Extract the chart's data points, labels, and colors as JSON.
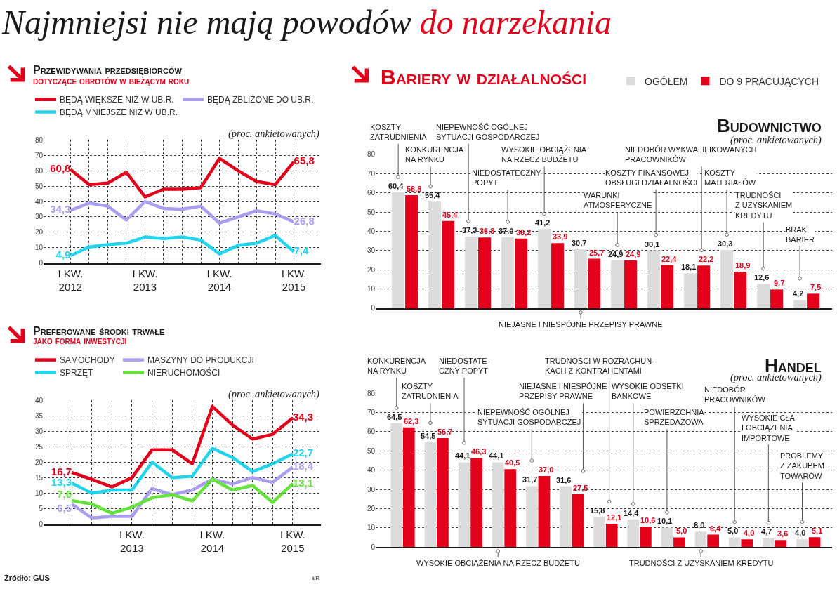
{
  "chart_data": [
    {
      "type": "other",
      "title": "Najmniejsi nie mają powodów",
      "subtitle": "do narzekania"
    },
    {
      "type": "line",
      "title": "Przewidywania przedsiębiorców",
      "subtitle": "dotyczące obrotów w bieżącym roku",
      "annotations": [
        "(proc. ankietowanych)"
      ],
      "categories": [
        "I KW.\n2012",
        null,
        null,
        null,
        "I KW.\n2013",
        null,
        null,
        null,
        "I KW.\n2014",
        null,
        null,
        null,
        "I KW.\n2015"
      ],
      "series": [
        {
          "name": "BĘDĄ WIĘKSZE NIŻ W UB.R.",
          "color": "#e2001a",
          "values": [
            60.8,
            51,
            52,
            59,
            43,
            48,
            48,
            49,
            68,
            60,
            53,
            51,
            65.8
          ],
          "value_labels": [
            "60,8",
            null,
            null,
            null,
            null,
            null,
            null,
            null,
            null,
            null,
            null,
            null,
            "65,8"
          ]
        },
        {
          "name": "BĘDĄ ZBLIŻONE DO UB.R.",
          "color": "#a99ff0",
          "values": [
            34.3,
            39,
            37,
            28,
            40,
            35.5,
            35,
            37,
            26,
            30,
            34,
            32,
            26.8
          ],
          "value_labels": [
            "34,3",
            null,
            null,
            null,
            null,
            null,
            null,
            null,
            null,
            null,
            null,
            null,
            "26,8"
          ]
        },
        {
          "name": "BĘDĄ MNIEJSZE NIŻ W UB.R.",
          "color": "#22d4ec",
          "values": [
            4.9,
            10.5,
            12,
            13,
            17,
            16,
            17,
            15,
            6,
            11.5,
            13,
            18,
            7.4
          ],
          "value_labels": [
            "4,9",
            null,
            null,
            null,
            null,
            null,
            null,
            null,
            null,
            null,
            null,
            null,
            "7,4"
          ]
        }
      ],
      "ylim": [
        0,
        80
      ],
      "yticks": [
        0,
        10,
        20,
        30,
        40,
        50,
        60,
        70,
        80
      ],
      "grid": true,
      "legend": "top"
    },
    {
      "type": "bar",
      "title": "Bariery w działalności",
      "subtitle": "Budownictwo",
      "annotations": [
        "(proc. ankietowanych)"
      ],
      "categories": [
        "KOSZTY\nZATRUDNIENIA",
        "KONKURENCJA\nNA RYNKU",
        "NIEPEWNOŚĆ OGÓLNEJ\nSYTUACJI GOSPODARCZEJ",
        "NIEDOSTATECZNY\nPOPYT",
        "WYSOKIE OBCIĄŻENIA\nNA RZECZ BUDŻETU",
        "NIEJASNE I NIESPÓJNE PRZEPISY PRAWNE",
        "WARUNKI\nATMOSFERYCZNE",
        "KOSZTY FINANSOWEJ\nOBSŁUGI DZIAŁALNOŚCI",
        "NIEDOBÓR WYKWALIFIKOWANYCH\nPRACOWNIKÓW",
        "KOSZTY\nMATERIAŁÓW",
        "TRUDNOŚCI\nZ UZYSKANIEM\nKREDYTU",
        "BRAK\nBARIER"
      ],
      "series": [
        {
          "name": "OGÓŁEM",
          "color": "#dcdcdc",
          "values": [
            60.4,
            55.4,
            37.3,
            37.0,
            41.2,
            30.7,
            24.9,
            30.1,
            18.1,
            30.3,
            12.6,
            4.2
          ],
          "value_labels": [
            "60,4",
            "55,4",
            "37,3",
            "37,0",
            "41,2",
            "30,7",
            "24,9",
            "30,1",
            "18,1",
            "30,3",
            "12,6",
            "4,2"
          ]
        },
        {
          "name": "DO 9 PRACUJĄCYCH",
          "color": "#e2001a",
          "values": [
            58.8,
            45.4,
            36.8,
            36.2,
            33.9,
            25.7,
            24.9,
            22.4,
            22.2,
            18.9,
            9.7,
            7.5
          ],
          "value_labels": [
            "58,8",
            "45,4",
            "36,8",
            "36,2",
            "33,9",
            "25,7",
            "24,9",
            "22,4",
            "22,2",
            "18,9",
            "9,7",
            "7,5"
          ]
        }
      ],
      "ylim": [
        0,
        80
      ],
      "yticks": [
        0,
        10,
        20,
        30,
        40,
        50,
        60,
        70,
        80
      ],
      "grid": "y",
      "legend": "top right"
    },
    {
      "type": "line",
      "title": "Preferowane środki trwałe",
      "subtitle": "jako forma inwestycji",
      "annotations": [
        "(proc. ankietowanych)",
        "Źródło: GUS",
        "ŁR"
      ],
      "categories": [
        null,
        null,
        null,
        "I KW.\n2013",
        null,
        null,
        null,
        "I KW.\n2014",
        null,
        null,
        null,
        "I KW.\n2015"
      ],
      "series": [
        {
          "name": "SAMOCHODY",
          "color": "#e2001a",
          "values": [
            16.7,
            14.5,
            12,
            15,
            24,
            24,
            19.5,
            38,
            32,
            27.5,
            29,
            34.3
          ],
          "value_labels": [
            "16,7",
            null,
            null,
            null,
            null,
            null,
            null,
            null,
            null,
            null,
            null,
            "34,3"
          ]
        },
        {
          "name": "MASZYNY DO PRODUKCJI",
          "color": "#a99ff0",
          "values": [
            6.5,
            2,
            2.5,
            2.5,
            11.5,
            9.5,
            11,
            14.5,
            13,
            15,
            13.5,
            18.4
          ],
          "value_labels": [
            "6,5",
            null,
            null,
            null,
            null,
            null,
            null,
            null,
            null,
            null,
            null,
            "18,4"
          ]
        },
        {
          "name": "SPRZĘT",
          "color": "#22d4ec",
          "values": [
            13.3,
            10,
            11,
            11,
            20,
            15,
            15.5,
            24.5,
            21.5,
            17,
            19.5,
            22.7
          ],
          "value_labels": [
            "13,3",
            null,
            null,
            null,
            null,
            null,
            null,
            null,
            null,
            null,
            null,
            "22,7"
          ]
        },
        {
          "name": "NIERUCHOMOŚCI",
          "color": "#66e23c",
          "values": [
            7.6,
            6.5,
            3.5,
            5.5,
            8.5,
            9.5,
            7.5,
            14.5,
            11,
            12.5,
            7,
            13.1
          ],
          "value_labels": [
            "7,6",
            null,
            null,
            null,
            null,
            null,
            null,
            null,
            null,
            null,
            null,
            "13,1"
          ]
        }
      ],
      "ylim": [
        0,
        40
      ],
      "yticks": [
        0,
        5,
        10,
        15,
        20,
        25,
        30,
        35,
        40
      ],
      "grid": true,
      "legend": "top"
    },
    {
      "type": "bar",
      "title": "Handel",
      "annotations": [
        "(proc. ankietowanych)"
      ],
      "categories": [
        "KONKURENCJA\nNA RYNKU",
        "KOSZTY\nZATRUDNIENIA",
        "NIEDOSTATE-\nCZNY POPYT",
        "WYSOKIE OBCIĄŻENIA NA RZECZ BUDŻETU",
        "NIEPEWNOŚĆ OGÓLNEJ\nSYTUACJI GOSPODARCZEJ",
        "NIEJASNE I NIESPÓJNE\nPRZEPISY PRAWNE",
        "TRUDNOŚCI W ROZRACHUN-\nKACH Z KONTRAHENTAMI",
        "WYSOKIE ODSETKI\nBANKOWE",
        "POWIERZCHNIA\nSPRZEDAŻOWA",
        "TRUDNOŚCI Z UZYSKANIEM KREDYTU",
        "NIEDOBÓR\nPRACOWNIKÓW",
        "WYSOKIE CŁA\nI OBCIĄŻENIA\nIMPORTOWE",
        "PROBLEMY\nZ ZAKUPEM\nTOWARÓW"
      ],
      "series": [
        {
          "color": "#dcdcdc",
          "values": [
            64.5,
            54.5,
            44.1,
            44.1,
            31.7,
            31.6,
            15.8,
            14.4,
            10.1,
            8.0,
            5.0,
            4.7,
            4.0
          ],
          "value_labels": [
            "64,5",
            "54,5",
            "44,1",
            "44,1",
            "31,7",
            "31,6",
            "15,8",
            "14,4",
            "10,1",
            "8,0",
            "5,0",
            "4,7",
            "4,0"
          ]
        },
        {
          "color": "#e2001a",
          "values": [
            62.3,
            56.7,
            46.3,
            40.5,
            37.0,
            27.5,
            12.1,
            10.6,
            5.0,
            6.4,
            4.0,
            3.6,
            5.1
          ],
          "value_labels": [
            "62,3",
            "56,7",
            "46,3",
            "40,5",
            "37,0",
            "27,5",
            "12,1",
            "10,6",
            "5,0",
            "6,4",
            "4,0",
            "3,6",
            "5,1"
          ]
        }
      ],
      "ylim": [
        0,
        80
      ],
      "yticks": [
        0,
        10,
        20,
        30,
        40,
        50,
        60,
        70,
        80
      ],
      "grid": "y"
    }
  ]
}
